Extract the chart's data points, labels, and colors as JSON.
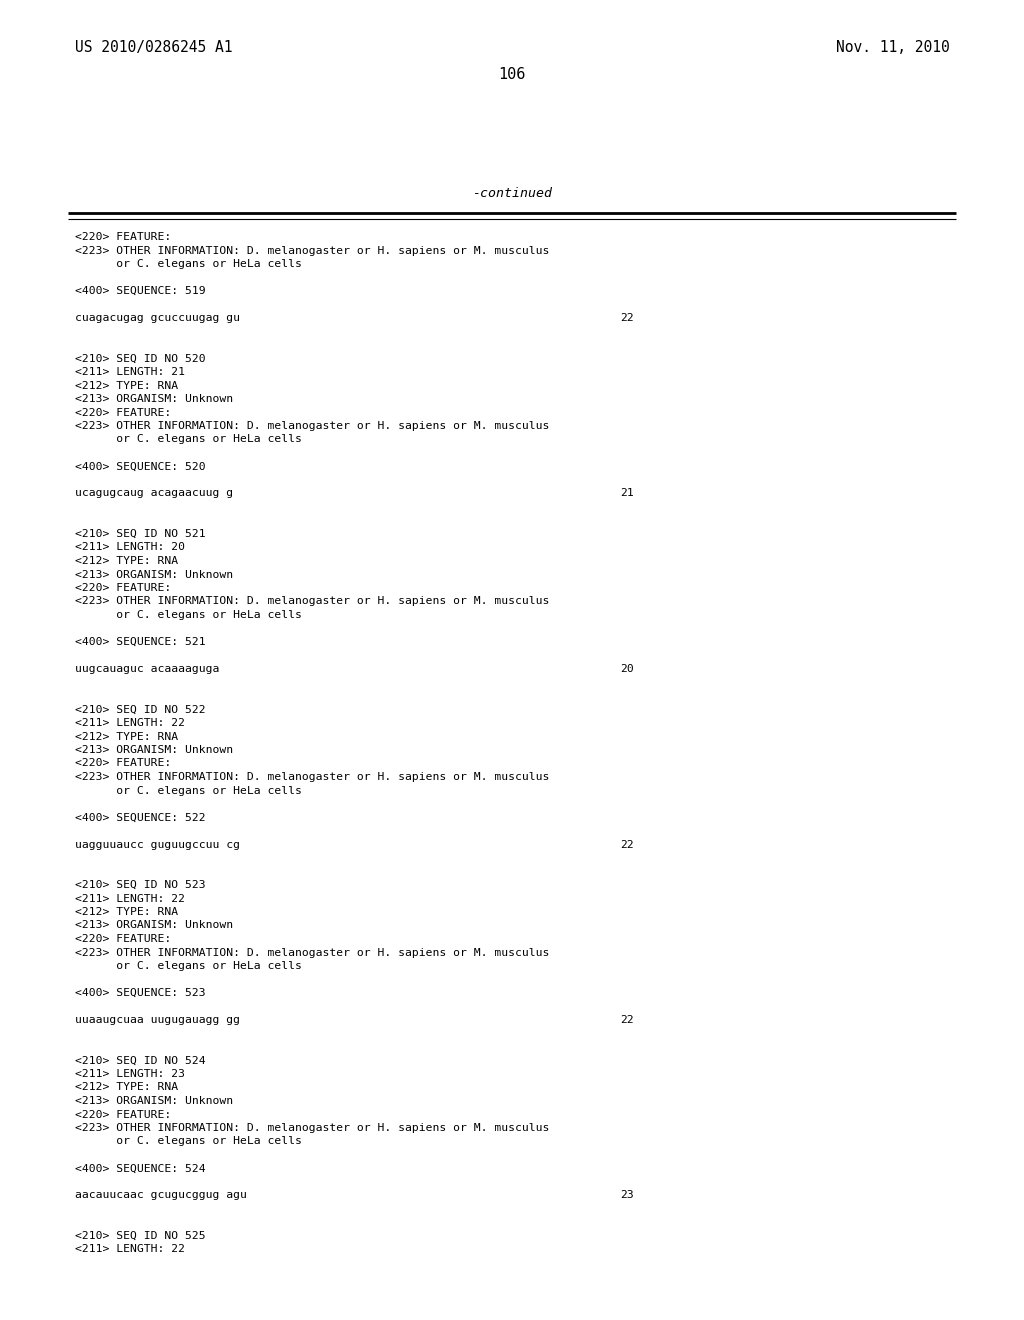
{
  "background_color": "#ffffff",
  "header_left": "US 2010/0286245 A1",
  "header_right": "Nov. 11, 2010",
  "page_number": "106",
  "continued_label": "-continued",
  "monospace_font": "DejaVu Sans Mono",
  "header_fontsize": 10.5,
  "page_num_fontsize": 11,
  "continued_fontsize": 9.5,
  "body_fontsize": 8.2,
  "content_lines": [
    {
      "text": "<220> FEATURE:",
      "num": null
    },
    {
      "text": "<223> OTHER INFORMATION: D. melanogaster or H. sapiens or M. musculus",
      "num": null
    },
    {
      "text": "      or C. elegans or HeLa cells",
      "num": null
    },
    {
      "text": "",
      "num": null
    },
    {
      "text": "<400> SEQUENCE: 519",
      "num": null
    },
    {
      "text": "",
      "num": null
    },
    {
      "text": "cuagacugag gcuccuugag gu",
      "num": "22"
    },
    {
      "text": "",
      "num": null
    },
    {
      "text": "",
      "num": null
    },
    {
      "text": "<210> SEQ ID NO 520",
      "num": null
    },
    {
      "text": "<211> LENGTH: 21",
      "num": null
    },
    {
      "text": "<212> TYPE: RNA",
      "num": null
    },
    {
      "text": "<213> ORGANISM: Unknown",
      "num": null
    },
    {
      "text": "<220> FEATURE:",
      "num": null
    },
    {
      "text": "<223> OTHER INFORMATION: D. melanogaster or H. sapiens or M. musculus",
      "num": null
    },
    {
      "text": "      or C. elegans or HeLa cells",
      "num": null
    },
    {
      "text": "",
      "num": null
    },
    {
      "text": "<400> SEQUENCE: 520",
      "num": null
    },
    {
      "text": "",
      "num": null
    },
    {
      "text": "ucagugcaug acagaacuug g",
      "num": "21"
    },
    {
      "text": "",
      "num": null
    },
    {
      "text": "",
      "num": null
    },
    {
      "text": "<210> SEQ ID NO 521",
      "num": null
    },
    {
      "text": "<211> LENGTH: 20",
      "num": null
    },
    {
      "text": "<212> TYPE: RNA",
      "num": null
    },
    {
      "text": "<213> ORGANISM: Unknown",
      "num": null
    },
    {
      "text": "<220> FEATURE:",
      "num": null
    },
    {
      "text": "<223> OTHER INFORMATION: D. melanogaster or H. sapiens or M. musculus",
      "num": null
    },
    {
      "text": "      or C. elegans or HeLa cells",
      "num": null
    },
    {
      "text": "",
      "num": null
    },
    {
      "text": "<400> SEQUENCE: 521",
      "num": null
    },
    {
      "text": "",
      "num": null
    },
    {
      "text": "uugcauaguc acaaaaguga",
      "num": "20"
    },
    {
      "text": "",
      "num": null
    },
    {
      "text": "",
      "num": null
    },
    {
      "text": "<210> SEQ ID NO 522",
      "num": null
    },
    {
      "text": "<211> LENGTH: 22",
      "num": null
    },
    {
      "text": "<212> TYPE: RNA",
      "num": null
    },
    {
      "text": "<213> ORGANISM: Unknown",
      "num": null
    },
    {
      "text": "<220> FEATURE:",
      "num": null
    },
    {
      "text": "<223> OTHER INFORMATION: D. melanogaster or H. sapiens or M. musculus",
      "num": null
    },
    {
      "text": "      or C. elegans or HeLa cells",
      "num": null
    },
    {
      "text": "",
      "num": null
    },
    {
      "text": "<400> SEQUENCE: 522",
      "num": null
    },
    {
      "text": "",
      "num": null
    },
    {
      "text": "uagguuaucc guguugccuu cg",
      "num": "22"
    },
    {
      "text": "",
      "num": null
    },
    {
      "text": "",
      "num": null
    },
    {
      "text": "<210> SEQ ID NO 523",
      "num": null
    },
    {
      "text": "<211> LENGTH: 22",
      "num": null
    },
    {
      "text": "<212> TYPE: RNA",
      "num": null
    },
    {
      "text": "<213> ORGANISM: Unknown",
      "num": null
    },
    {
      "text": "<220> FEATURE:",
      "num": null
    },
    {
      "text": "<223> OTHER INFORMATION: D. melanogaster or H. sapiens or M. musculus",
      "num": null
    },
    {
      "text": "      or C. elegans or HeLa cells",
      "num": null
    },
    {
      "text": "",
      "num": null
    },
    {
      "text": "<400> SEQUENCE: 523",
      "num": null
    },
    {
      "text": "",
      "num": null
    },
    {
      "text": "uuaaugcuaa uugugauagg gg",
      "num": "22"
    },
    {
      "text": "",
      "num": null
    },
    {
      "text": "",
      "num": null
    },
    {
      "text": "<210> SEQ ID NO 524",
      "num": null
    },
    {
      "text": "<211> LENGTH: 23",
      "num": null
    },
    {
      "text": "<212> TYPE: RNA",
      "num": null
    },
    {
      "text": "<213> ORGANISM: Unknown",
      "num": null
    },
    {
      "text": "<220> FEATURE:",
      "num": null
    },
    {
      "text": "<223> OTHER INFORMATION: D. melanogaster or H. sapiens or M. musculus",
      "num": null
    },
    {
      "text": "      or C. elegans or HeLa cells",
      "num": null
    },
    {
      "text": "",
      "num": null
    },
    {
      "text": "<400> SEQUENCE: 524",
      "num": null
    },
    {
      "text": "",
      "num": null
    },
    {
      "text": "aacauucaac gcugucggug agu",
      "num": "23"
    },
    {
      "text": "",
      "num": null
    },
    {
      "text": "",
      "num": null
    },
    {
      "text": "<210> SEQ ID NO 525",
      "num": null
    },
    {
      "text": "<211> LENGTH: 22",
      "num": null
    }
  ]
}
